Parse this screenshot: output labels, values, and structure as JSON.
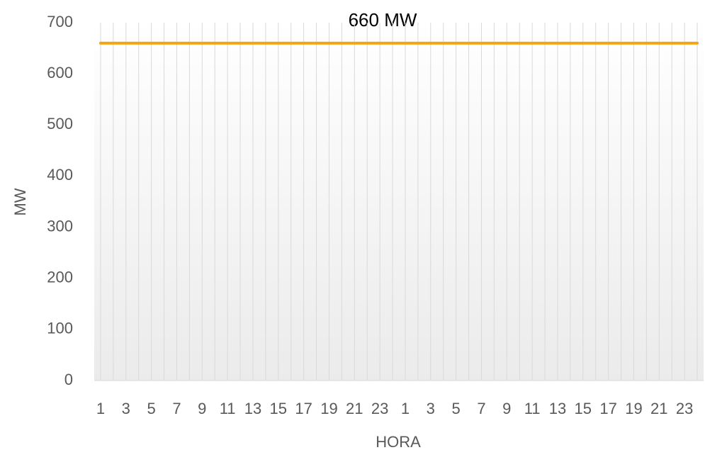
{
  "chart_data": {
    "type": "line",
    "title": "660 MW",
    "x_label": "HORA",
    "y_label": "MW",
    "categories": [
      1,
      null,
      3,
      null,
      5,
      null,
      7,
      null,
      9,
      null,
      11,
      null,
      13,
      null,
      15,
      null,
      17,
      null,
      19,
      null,
      21,
      null,
      23,
      null,
      1,
      null,
      3,
      null,
      5,
      null,
      7,
      null,
      9,
      null,
      11,
      null,
      13,
      null,
      15,
      null,
      17,
      null,
      19,
      null,
      21,
      null,
      23,
      null
    ],
    "values": [
      660,
      660,
      660,
      660,
      660,
      660,
      660,
      660,
      660,
      660,
      660,
      660,
      660,
      660,
      660,
      660,
      660,
      660,
      660,
      660,
      660,
      660,
      660,
      660,
      660,
      660,
      660,
      660,
      660,
      660,
      660,
      660,
      660,
      660,
      660,
      660,
      660,
      660,
      660,
      660,
      660,
      660,
      660,
      660,
      660,
      660,
      660,
      660
    ],
    "color": "#f5a511",
    "ylim": [
      0,
      700
    ],
    "yticks": [
      0,
      100,
      200,
      300,
      400,
      500,
      600,
      700
    ],
    "grid": true
  }
}
